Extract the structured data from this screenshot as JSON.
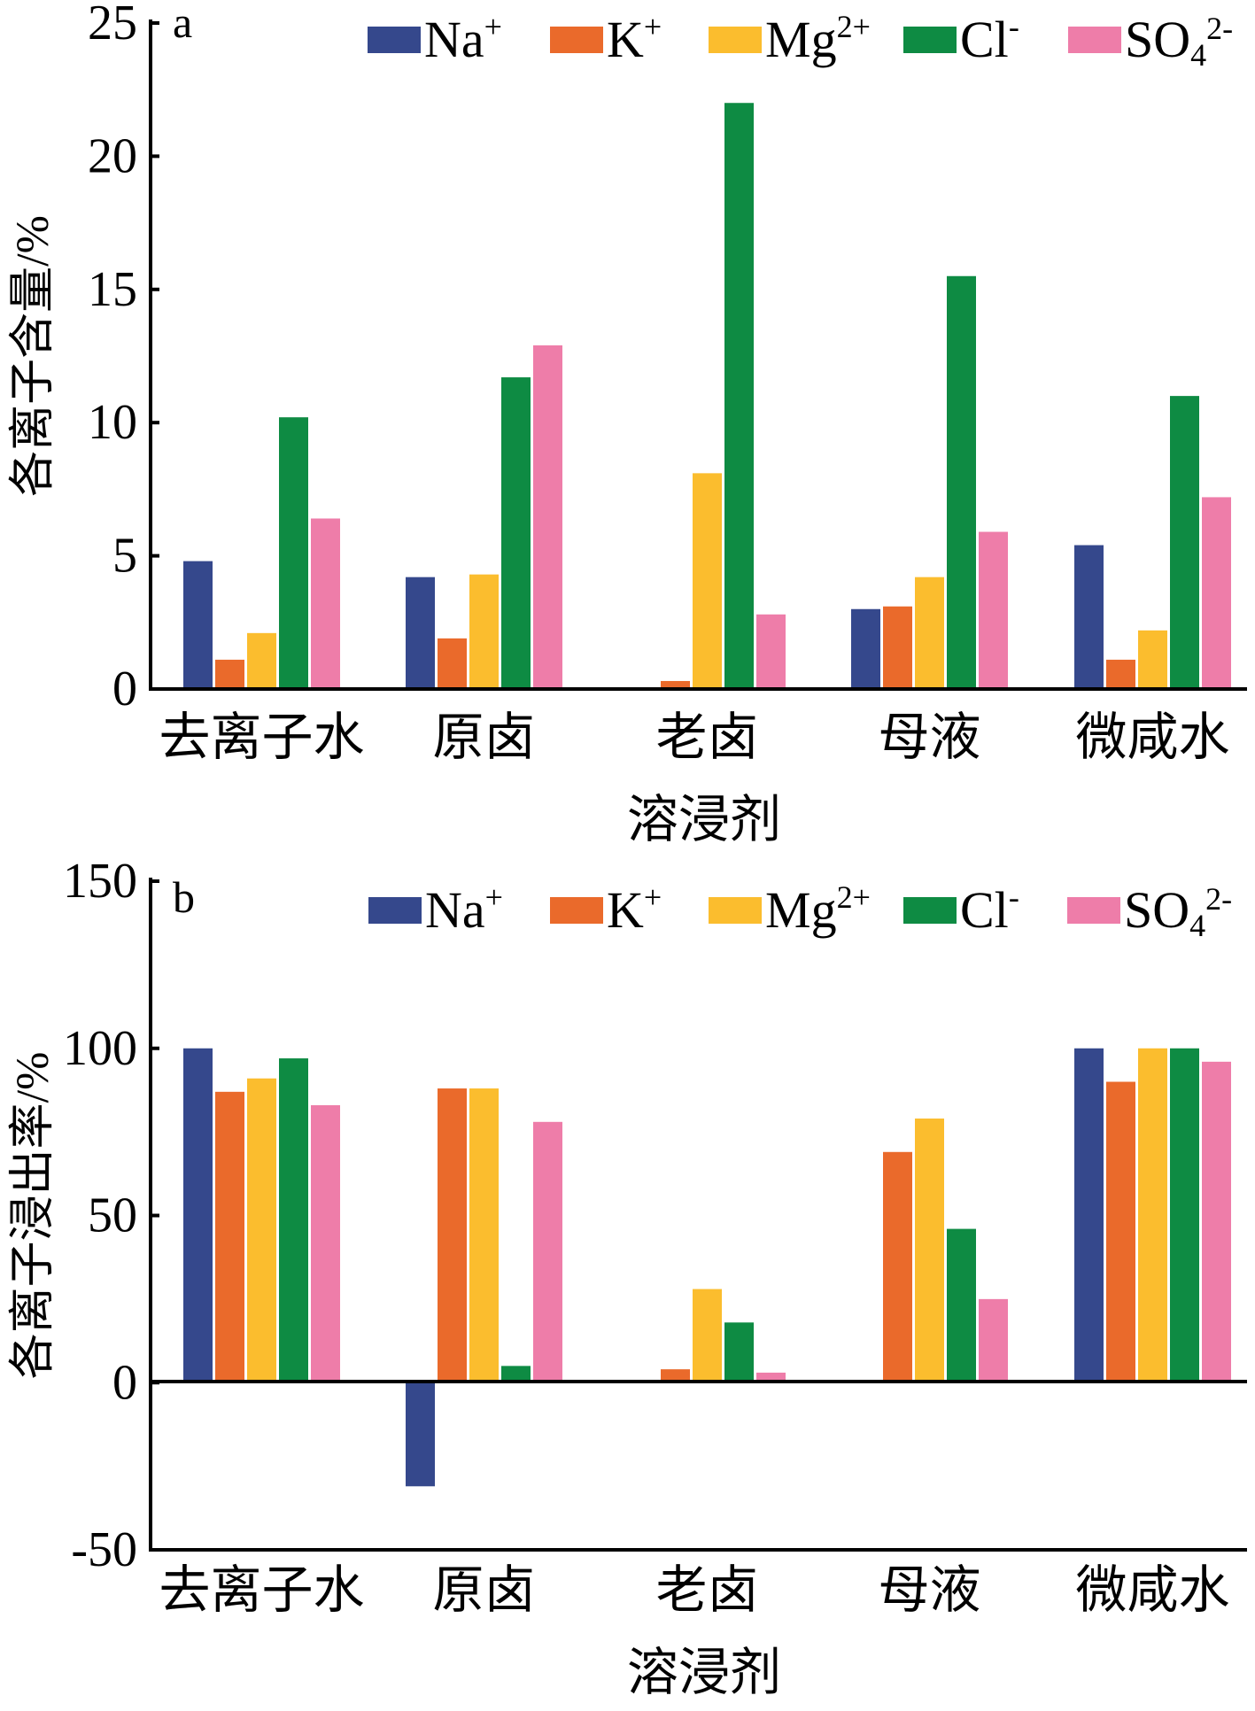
{
  "chart_data": [
    {
      "panel": "a",
      "type": "bar",
      "xlabel": "溶浸剂",
      "ylabel": "各离子含量/%",
      "ylim": [
        0,
        25
      ],
      "yticks": [
        0,
        5,
        10,
        15,
        20,
        25
      ],
      "ytick_labels": [
        "0",
        "5",
        "10",
        "15",
        "20",
        "25"
      ],
      "categories": [
        "去离子水",
        "原卤",
        "老卤",
        "母液",
        "微咸水"
      ],
      "legend_position": "top",
      "series": [
        {
          "name": "Na",
          "sup": "+",
          "color": "#35488C",
          "values": [
            4.8,
            4.2,
            0,
            3.0,
            5.4
          ]
        },
        {
          "name": "K",
          "sup": "+",
          "color": "#EA6A2B",
          "values": [
            1.1,
            1.9,
            0.3,
            3.1,
            1.1
          ]
        },
        {
          "name": "Mg",
          "sup": "2+",
          "color": "#FBBD2E",
          "values": [
            2.1,
            4.3,
            8.1,
            4.2,
            2.2
          ]
        },
        {
          "name": "Cl",
          "sup": "-",
          "color": "#0E8B43",
          "values": [
            10.2,
            11.7,
            22.0,
            15.5,
            11.0
          ]
        },
        {
          "name": "SO",
          "sub": "4",
          "sup": "2-",
          "color": "#EE7DA9",
          "values": [
            6.4,
            12.9,
            2.8,
            5.9,
            7.2
          ]
        }
      ]
    },
    {
      "panel": "b",
      "type": "bar",
      "xlabel": "溶浸剂",
      "ylabel": "各离子浸出率/%",
      "ylim": [
        -50,
        150
      ],
      "yticks": [
        -50,
        0,
        50,
        100,
        150
      ],
      "ytick_labels": [
        "-50",
        "0",
        "50",
        "100",
        "150"
      ],
      "categories": [
        "去离子水",
        "原卤",
        "老卤",
        "母液",
        "微咸水"
      ],
      "legend_position": "top",
      "series": [
        {
          "name": "Na",
          "sup": "+",
          "color": "#35488C",
          "values": [
            100,
            -31,
            0.5,
            0,
            100
          ]
        },
        {
          "name": "K",
          "sup": "+",
          "color": "#EA6A2B",
          "values": [
            87,
            88,
            4,
            69,
            90
          ]
        },
        {
          "name": "Mg",
          "sup": "2+",
          "color": "#FBBD2E",
          "values": [
            91,
            88,
            28,
            79,
            100
          ]
        },
        {
          "name": "Cl",
          "sup": "-",
          "color": "#0E8B43",
          "values": [
            97,
            5,
            18,
            46,
            100
          ]
        },
        {
          "name": "SO",
          "sub": "4",
          "sup": "2-",
          "color": "#EE7DA9",
          "values": [
            83,
            78,
            3,
            25,
            96
          ]
        }
      ]
    }
  ]
}
